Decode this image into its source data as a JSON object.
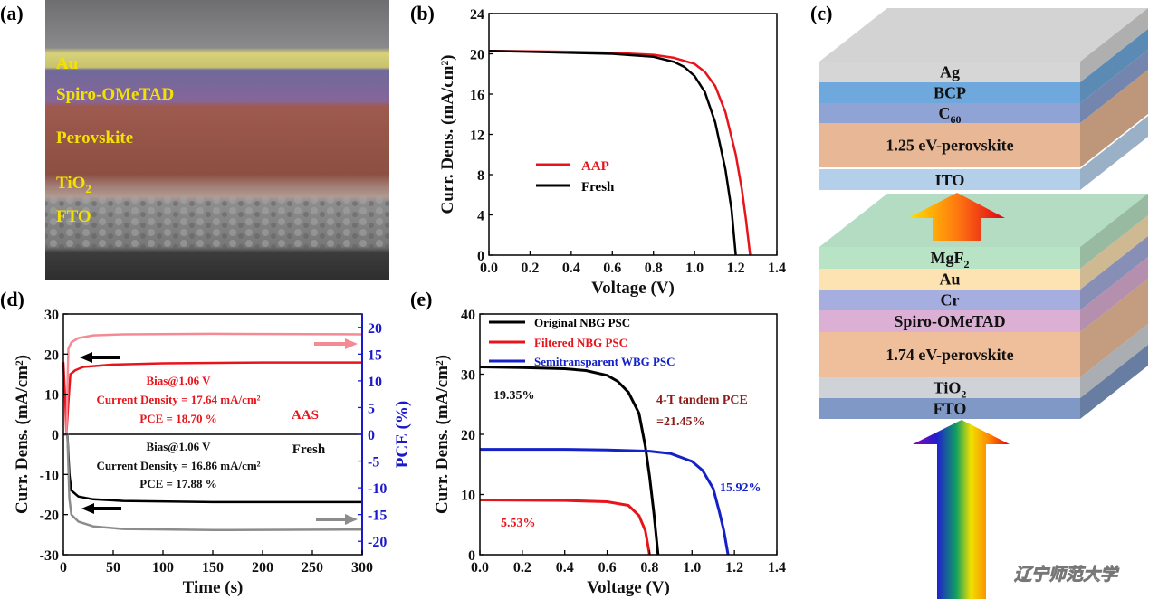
{
  "panel_labels": [
    "(a)",
    "(b)",
    "(c)",
    "(d)",
    "(e)"
  ],
  "sem_image": {
    "layers": [
      {
        "text": "Au",
        "sub": ""
      },
      {
        "text": "Spiro-OMeTAD",
        "sub": ""
      },
      {
        "text": "Perovskite",
        "sub": ""
      },
      {
        "text": "TiO",
        "sub": "2"
      },
      {
        "text": "FTO",
        "sub": ""
      }
    ]
  },
  "device_stack": {
    "top_cell": [
      {
        "text": "Ag",
        "sub": "",
        "color": "#d6d6d6"
      },
      {
        "text": "BCP",
        "sub": "",
        "color": "#6fa8dc"
      },
      {
        "text": "C",
        "sub": "60",
        "color": "#8fa3d4"
      },
      {
        "text": "1.25 eV-perovskite",
        "sub": "",
        "color": "#e8b896"
      },
      {
        "text": "ITO",
        "sub": "",
        "color": "#b4cfea"
      }
    ],
    "bottom_cell": [
      {
        "text": "MgF",
        "sub": "2",
        "color": "#b8e3c4"
      },
      {
        "text": "Au",
        "sub": "",
        "color": "#fde2b2"
      },
      {
        "text": "Cr",
        "sub": "",
        "color": "#a6aedf"
      },
      {
        "text": "Spiro-OMeTAD",
        "sub": "",
        "color": "#dbb0d4"
      },
      {
        "text": "1.74 eV-perovskite",
        "sub": "",
        "color": "#efbf9c"
      },
      {
        "text": "TiO",
        "sub": "2",
        "color": "#cfd3d8"
      },
      {
        "text": "FTO",
        "sub": "",
        "color": "#7f98c6"
      }
    ],
    "watermark": "辽宁师范大学"
  },
  "chart_data": [
    {
      "panel": "(b)",
      "type": "line",
      "xlabel": "Voltage (V)",
      "ylabel": "Curr. Dens. (mA/cm²)",
      "xlim": [
        0,
        1.4
      ],
      "ylim": [
        0,
        24
      ],
      "x_ticks": [
        "0.0",
        "0.2",
        "0.4",
        "0.6",
        "0.8",
        "1.0",
        "1.2",
        "1.4"
      ],
      "y_ticks": [
        "0",
        "4",
        "8",
        "12",
        "16",
        "20",
        "24"
      ],
      "legend": "center-left",
      "series": [
        {
          "name": "AAP",
          "color": "#e8141c",
          "axis": "left",
          "points": [
            [
              0,
              20.3
            ],
            [
              0.2,
              20.25
            ],
            [
              0.4,
              20.2
            ],
            [
              0.6,
              20.1
            ],
            [
              0.8,
              19.9
            ],
            [
              0.9,
              19.6
            ],
            [
              1.0,
              19.0
            ],
            [
              1.05,
              18.2
            ],
            [
              1.1,
              16.8
            ],
            [
              1.15,
              14.2
            ],
            [
              1.2,
              10.0
            ],
            [
              1.23,
              6.5
            ],
            [
              1.25,
              3.5
            ],
            [
              1.27,
              0
            ]
          ]
        },
        {
          "name": "Fresh",
          "color": "#000000",
          "axis": "left",
          "points": [
            [
              0,
              20.3
            ],
            [
              0.2,
              20.2
            ],
            [
              0.4,
              20.1
            ],
            [
              0.6,
              20.0
            ],
            [
              0.8,
              19.7
            ],
            [
              0.9,
              19.2
            ],
            [
              0.95,
              18.7
            ],
            [
              1.0,
              17.8
            ],
            [
              1.05,
              16.2
            ],
            [
              1.1,
              13.2
            ],
            [
              1.15,
              8.5
            ],
            [
              1.18,
              4.5
            ],
            [
              1.2,
              0
            ]
          ]
        }
      ]
    },
    {
      "panel": "(d)",
      "type": "line",
      "xlabel": "Time (s)",
      "ylabel": "Curr. Dens. (mA/cm²)",
      "y2label": "PCE (%)",
      "xlim": [
        0,
        300
      ],
      "ylim": [
        -30,
        30
      ],
      "y2lim": [
        -22.5,
        22.5
      ],
      "x_ticks": [
        "0",
        "50",
        "100",
        "150",
        "200",
        "250",
        "300"
      ],
      "y_ticks": [
        "-30",
        "-20",
        "-10",
        "0",
        "10",
        "20",
        "30"
      ],
      "y2_ticks": [
        "-20",
        "-15",
        "-10",
        "-5",
        "0",
        "5",
        "10",
        "15",
        "20"
      ],
      "series": [
        {
          "name": "AAS current density",
          "color": "#e8141c",
          "axis": "left",
          "points": [
            [
              0,
              18
            ],
            [
              2,
              8
            ],
            [
              3,
              0
            ],
            [
              5,
              8
            ],
            [
              7,
              15
            ],
            [
              12,
              16
            ],
            [
              20,
              16.8
            ],
            [
              50,
              17.4
            ],
            [
              100,
              17.7
            ],
            [
              200,
              17.9
            ],
            [
              300,
              17.9
            ]
          ]
        },
        {
          "name": "AAS PCE",
          "color": "#f48b94",
          "axis": "right",
          "points": [
            [
              0,
              0
            ],
            [
              3,
              0
            ],
            [
              5,
              16
            ],
            [
              8,
              17.2
            ],
            [
              15,
              18
            ],
            [
              30,
              18.5
            ],
            [
              60,
              18.7
            ],
            [
              150,
              18.8
            ],
            [
              300,
              18.7
            ]
          ]
        },
        {
          "name": "Fresh current density",
          "color": "#000000",
          "axis": "left",
          "points": [
            [
              0,
              0
            ],
            [
              4,
              0
            ],
            [
              6,
              -10
            ],
            [
              8,
              -14
            ],
            [
              15,
              -15.5
            ],
            [
              30,
              -16.2
            ],
            [
              60,
              -16.6
            ],
            [
              150,
              -16.9
            ],
            [
              300,
              -16.9
            ]
          ]
        },
        {
          "name": "Fresh PCE",
          "color": "#8c8c8c",
          "axis": "right",
          "points": [
            [
              0,
              0
            ],
            [
              4,
              0
            ],
            [
              6,
              -12
            ],
            [
              8,
              -15
            ],
            [
              15,
              -16.3
            ],
            [
              30,
              -17.2
            ],
            [
              60,
              -17.7
            ],
            [
              150,
              -17.9
            ],
            [
              300,
              -17.8
            ]
          ]
        }
      ],
      "annotations": {
        "aas": [
          "Bias@1.06 V",
          "Current Density = 17.64 mA/cm²",
          "PCE = 18.70 %",
          "AAS"
        ],
        "fresh": [
          "Bias@1.06 V",
          "Current Density = 16.86 mA/cm²",
          "PCE = 17.88 %",
          "Fresh"
        ]
      }
    },
    {
      "panel": "(e)",
      "type": "line",
      "xlabel": "Voltage (V)",
      "ylabel": "Curr. Dens. (mA/cm²)",
      "xlim": [
        0,
        1.4
      ],
      "ylim": [
        0,
        40
      ],
      "x_ticks": [
        "0.0",
        "0.2",
        "0.4",
        "0.6",
        "0.8",
        "1.0",
        "1.2",
        "1.4"
      ],
      "y_ticks": [
        "0",
        "10",
        "20",
        "30",
        "40"
      ],
      "legend": "top-right",
      "series": [
        {
          "name": "Original NBG PSC",
          "color": "#000000",
          "axis": "left",
          "points": [
            [
              0,
              31.2
            ],
            [
              0.2,
              31.1
            ],
            [
              0.4,
              30.9
            ],
            [
              0.5,
              30.6
            ],
            [
              0.6,
              29.8
            ],
            [
              0.65,
              28.8
            ],
            [
              0.7,
              27
            ],
            [
              0.75,
              23.5
            ],
            [
              0.78,
              18
            ],
            [
              0.8,
              13
            ],
            [
              0.82,
              7
            ],
            [
              0.84,
              0
            ]
          ]
        },
        {
          "name": "Filtered NBG PSC",
          "color": "#e8141c",
          "axis": "left",
          "points": [
            [
              0,
              9.1
            ],
            [
              0.4,
              9.0
            ],
            [
              0.6,
              8.8
            ],
            [
              0.7,
              8.2
            ],
            [
              0.75,
              6.5
            ],
            [
              0.78,
              4
            ],
            [
              0.8,
              0
            ]
          ]
        },
        {
          "name": "Semitransparent WBG PSC",
          "color": "#1420c8",
          "axis": "left",
          "points": [
            [
              0,
              17.5
            ],
            [
              0.4,
              17.5
            ],
            [
              0.6,
              17.4
            ],
            [
              0.8,
              17.2
            ],
            [
              0.9,
              16.8
            ],
            [
              1.0,
              15.5
            ],
            [
              1.05,
              14
            ],
            [
              1.1,
              11
            ],
            [
              1.13,
              7
            ],
            [
              1.15,
              4
            ],
            [
              1.17,
              0
            ]
          ]
        }
      ],
      "annotations": {
        "original_pce": "19.35%",
        "filtered_pce": "5.53%",
        "semitransparent_pce": "15.92%",
        "tandem_label": "4-T tandem PCE",
        "tandem_value": "=21.45%"
      }
    }
  ]
}
